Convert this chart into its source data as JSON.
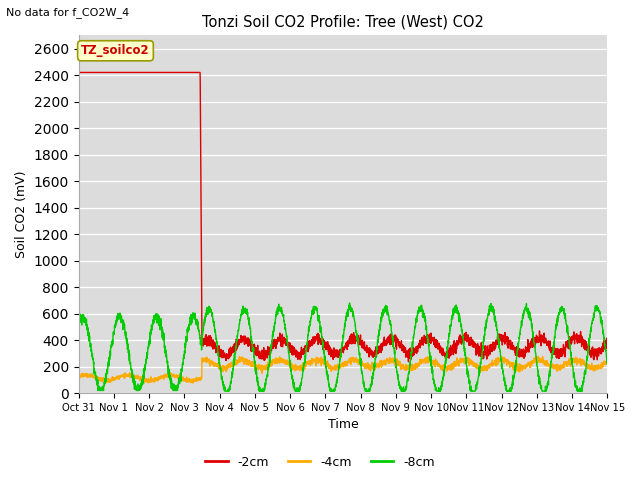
{
  "title": "Tonzi Soil CO2 Profile: Tree (West) CO2",
  "top_left_text": "No data for f_CO2W_4",
  "ylabel": "Soil CO2 (mV)",
  "xlabel": "Time",
  "legend_label": "TZ_soilco2",
  "ylim": [
    0,
    2700
  ],
  "yticks": [
    0,
    200,
    400,
    600,
    800,
    1000,
    1200,
    1400,
    1600,
    1800,
    2000,
    2200,
    2400,
    2600
  ],
  "background_color": "#dcdcdc",
  "fig_background": "#ffffff",
  "series": [
    {
      "label": "-2cm",
      "color": "#dd0000"
    },
    {
      "label": "-4cm",
      "color": "#ffaa00"
    },
    {
      "label": "-8cm",
      "color": "#00cc00"
    }
  ],
  "xtick_labels": [
    "Oct 31",
    "Nov 1",
    "Nov 2",
    "Nov 3",
    "Nov 4",
    "Nov 5",
    "Nov 6",
    "Nov 7",
    "Nov 8",
    "Nov 9",
    "Nov 10",
    "Nov 11",
    "Nov 12",
    "Nov 13",
    "Nov 14",
    "Nov 15"
  ],
  "legend_box_color": "#ffffcc",
  "legend_box_edge": "#999900",
  "legend_text_color": "#cc0000"
}
